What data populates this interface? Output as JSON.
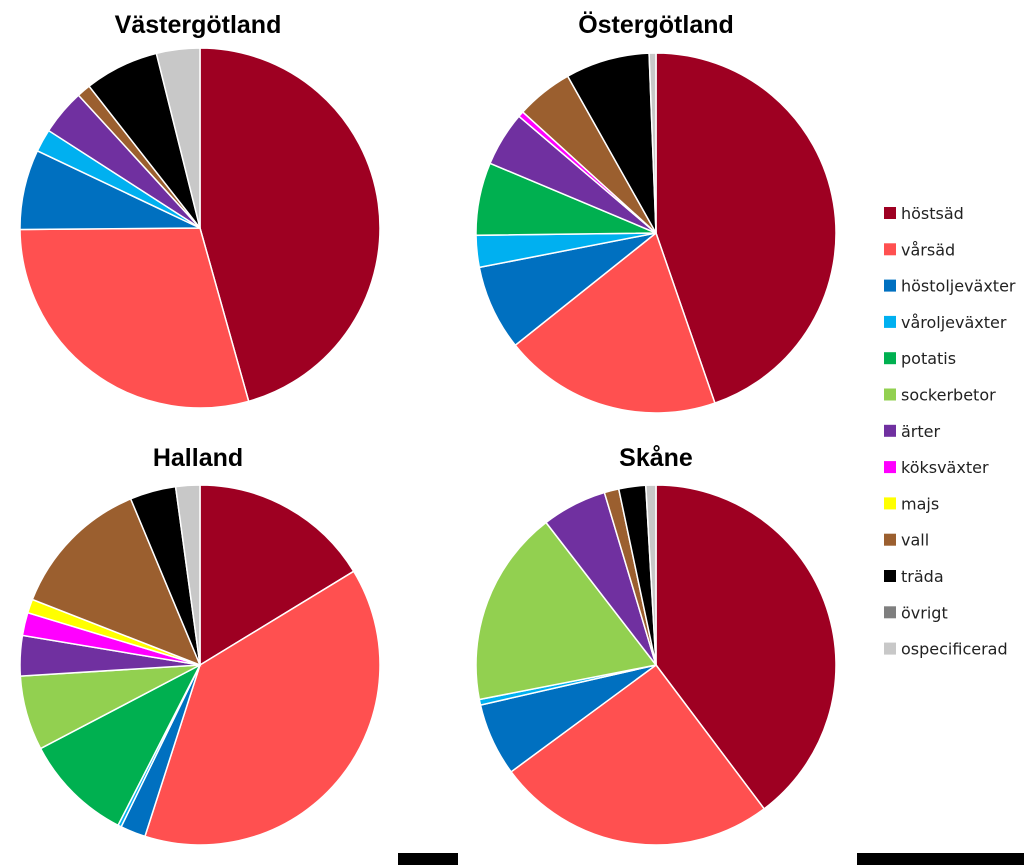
{
  "chart_data": {
    "type": "pie",
    "legend_position": "right",
    "categories": [
      "höstsäd",
      "vårsäd",
      "höstoljeväxter",
      "våroljeväxter",
      "potatis",
      "sockerbetor",
      "ärter",
      "köksväxter",
      "majs",
      "vall",
      "träda",
      "övrigt",
      "ospecificerad"
    ],
    "colors": [
      "#9e0022",
      "#ff5050",
      "#0070c0",
      "#00b0f0",
      "#00b050",
      "#92d050",
      "#7030a0",
      "#ff00ff",
      "#ffff00",
      "#9b5f2f",
      "#000000",
      "#7f7f7f",
      "#c8c8c8"
    ],
    "charts": [
      {
        "title": "Västergötland",
        "values": [
          44.5,
          28.5,
          7.0,
          2.0,
          0.0,
          0.0,
          4.0,
          0.0,
          0.0,
          1.2,
          6.5,
          0.0,
          3.8
        ]
      },
      {
        "title": "Östergötland",
        "values": [
          43.8,
          19.2,
          7.5,
          2.8,
          6.4,
          0.0,
          4.8,
          0.5,
          0.0,
          5.0,
          7.4,
          0.0,
          0.6
        ]
      },
      {
        "title": "Halland",
        "values": [
          15.8,
          37.5,
          2.2,
          0.3,
          9.5,
          6.5,
          3.5,
          2.0,
          1.2,
          12.4,
          4.0,
          0.0,
          2.1
        ]
      },
      {
        "title": "Skåne",
        "values": [
          39.5,
          25.0,
          6.5,
          0.5,
          0.0,
          17.5,
          5.8,
          0.0,
          0.0,
          1.3,
          2.4,
          0.0,
          0.9
        ]
      }
    ]
  }
}
